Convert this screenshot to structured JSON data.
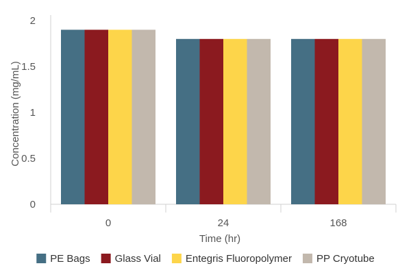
{
  "chart_data": {
    "type": "bar",
    "title": "",
    "xlabel": "Time (hr)",
    "ylabel": "Concentration (mg/mL)",
    "categories": [
      "0",
      "24",
      "168"
    ],
    "series": [
      {
        "name": "PE Bags",
        "values": [
          1.9,
          1.8,
          1.8
        ],
        "color": "#456f84"
      },
      {
        "name": "Glass Vial",
        "values": [
          1.9,
          1.8,
          1.8
        ],
        "color": "#8b1a1f"
      },
      {
        "name": "Entegris Fluoropolymer",
        "values": [
          1.9,
          1.8,
          1.8
        ],
        "color": "#fdd54a"
      },
      {
        "name": "PP Cryotube",
        "values": [
          1.9,
          1.8,
          1.8
        ],
        "color": "#c2b8ad"
      }
    ],
    "ylim": [
      0,
      2
    ],
    "yticks": [
      0,
      0.5,
      1,
      1.5,
      2
    ],
    "ytick_labels": [
      "0",
      "0.5",
      "1",
      "1.5",
      "2"
    ],
    "grid": false,
    "legend_position": "bottom"
  }
}
